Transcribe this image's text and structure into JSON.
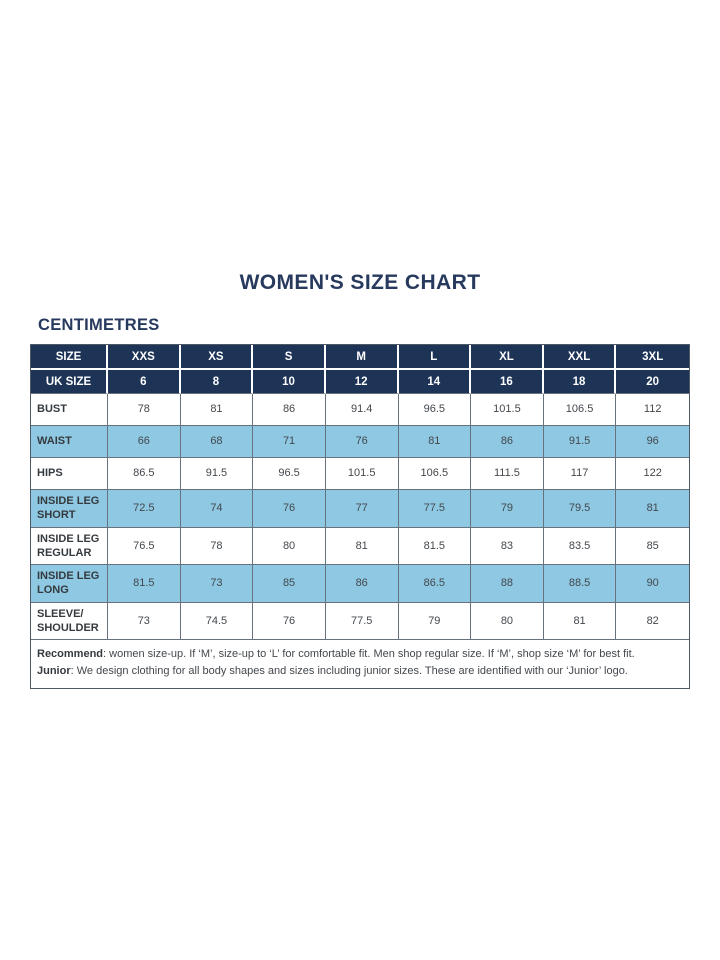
{
  "page": {
    "title": "WOMEN'S SIZE CHART",
    "subtitle": "CENTIMETRES"
  },
  "table": {
    "header_row_1": [
      "SIZE",
      "XXS",
      "XS",
      "S",
      "M",
      "L",
      "XL",
      "XXL",
      "3XL"
    ],
    "header_row_2": [
      "UK SIZE",
      "6",
      "8",
      "10",
      "12",
      "14",
      "16",
      "18",
      "20"
    ],
    "rows": [
      {
        "label": "BUST",
        "highlight": false,
        "values": [
          "78",
          "81",
          "86",
          "91.4",
          "96.5",
          "101.5",
          "106.5",
          "112"
        ]
      },
      {
        "label": "WAIST",
        "highlight": true,
        "values": [
          "66",
          "68",
          "71",
          "76",
          "81",
          "86",
          "91.5",
          "96"
        ]
      },
      {
        "label": "HIPS",
        "highlight": false,
        "values": [
          "86.5",
          "91.5",
          "96.5",
          "101.5",
          "106.5",
          "111.5",
          "117",
          "122"
        ]
      },
      {
        "label": "INSIDE LEG SHORT",
        "highlight": true,
        "values": [
          "72.5",
          "74",
          "76",
          "77",
          "77.5",
          "79",
          "79.5",
          "81"
        ]
      },
      {
        "label": "INSIDE LEG REGULAR",
        "highlight": false,
        "values": [
          "76.5",
          "78",
          "80",
          "81",
          "81.5",
          "83",
          "83.5",
          "85"
        ]
      },
      {
        "label": "INSIDE LEG LONG",
        "highlight": true,
        "values": [
          "81.5",
          "73",
          "85",
          "86",
          "86.5",
          "88",
          "88.5",
          "90"
        ]
      },
      {
        "label": "SLEEVE/ SHOULDER",
        "highlight": false,
        "values": [
          "73",
          "74.5",
          "76",
          "77.5",
          "79",
          "80",
          "81",
          "82"
        ]
      }
    ],
    "footnote": {
      "recommend_label": "Recommend",
      "recommend_text": ": women size-up. If ‘M’, size-up to ‘L’ for comfortable fit. Men shop regular size. If ‘M’, shop size ‘M’ for best fit.",
      "junior_label": "Junior",
      "junior_text": ": We design clothing for all body shapes and sizes including junior sizes. These are identified with our ‘Junior’ logo."
    }
  },
  "colors": {
    "navy": "#1d3457",
    "light_blue": "#8ec8e2",
    "border": "#66737f",
    "body_text": "#43484d"
  }
}
